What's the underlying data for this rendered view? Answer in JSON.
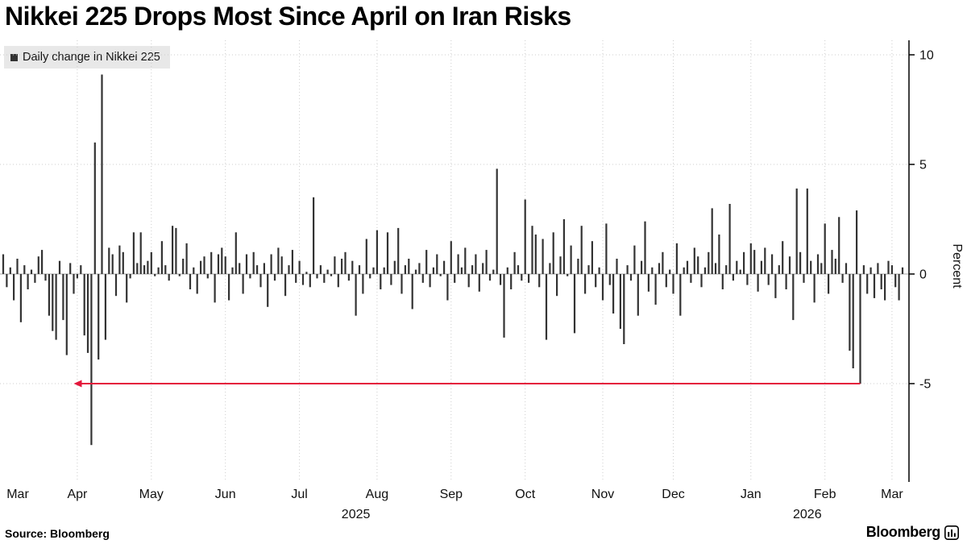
{
  "header": {
    "title": "Nikkei 225 Drops Most Since April on Iran Risks"
  },
  "legend": {
    "label": "Daily change in Nikkei 225",
    "marker_color": "#333333"
  },
  "footer": {
    "source": "Source: Bloomberg",
    "logo_text": "Bloomberg"
  },
  "chart_data": {
    "type": "bar",
    "title": "Nikkei 225 Drops Most Since April on Iran Risks",
    "series_name": "Daily change in Nikkei 225",
    "ylabel": "Percent",
    "yticks": [
      10,
      5,
      0,
      -5
    ],
    "ylim": [
      -9.5,
      10.5
    ],
    "grid": "dotted",
    "legend_position": "top-left",
    "bar_color": "#333333",
    "months": [
      {
        "label": "Mar",
        "days": 21
      },
      {
        "label": "Apr",
        "days": 21
      },
      {
        "label": "May",
        "days": 21
      },
      {
        "label": "Jun",
        "days": 21
      },
      {
        "label": "Jul",
        "days": 22
      },
      {
        "label": "Aug",
        "days": 21
      },
      {
        "label": "Sep",
        "days": 21
      },
      {
        "label": "Oct",
        "days": 22
      },
      {
        "label": "Nov",
        "days": 20
      },
      {
        "label": "Dec",
        "days": 22
      },
      {
        "label": "Jan",
        "days": 21
      },
      {
        "label": "Feb",
        "days": 19
      },
      {
        "label": "Mar",
        "days": 4
      }
    ],
    "years": [
      {
        "label": "2025",
        "center_index": 100
      },
      {
        "label": "2026",
        "center_index": 228
      }
    ],
    "values": [
      0.9,
      -0.6,
      0.3,
      -1.2,
      0.7,
      -2.2,
      0.4,
      -0.7,
      0.2,
      -0.4,
      0.8,
      1.1,
      -0.3,
      -1.9,
      -2.6,
      -3.0,
      0.6,
      -2.1,
      -3.7,
      0.5,
      -0.9,
      -0.2,
      0.4,
      -2.8,
      -3.6,
      -7.8,
      6.0,
      -3.9,
      9.1,
      -3.0,
      1.2,
      0.9,
      -1.0,
      1.3,
      1.0,
      -1.3,
      -0.2,
      1.9,
      0.5,
      1.9,
      0.4,
      0.6,
      1.0,
      -0.1,
      0.3,
      1.5,
      0.4,
      -0.3,
      2.2,
      2.1,
      -0.1,
      0.7,
      1.4,
      -0.7,
      0.3,
      -0.9,
      0.6,
      0.8,
      -0.2,
      1.0,
      -1.3,
      0.9,
      1.2,
      0.8,
      -1.2,
      0.3,
      1.9,
      0.5,
      -0.9,
      0.9,
      -0.2,
      1.0,
      0.4,
      -0.6,
      0.5,
      -1.5,
      0.9,
      -0.3,
      1.2,
      0.8,
      -1.0,
      0.4,
      1.1,
      -0.4,
      0.6,
      -0.5,
      0.1,
      -0.6,
      3.5,
      -0.2,
      0.4,
      -0.4,
      0.2,
      -0.1,
      0.8,
      -0.6,
      0.7,
      1.0,
      -0.3,
      0.6,
      -1.9,
      0.4,
      -0.9,
      1.6,
      -0.2,
      0.3,
      2.0,
      -0.7,
      0.3,
      1.9,
      -0.5,
      0.6,
      2.1,
      -0.9,
      0.4,
      0.7,
      -1.6,
      0.2,
      0.5,
      -0.4,
      1.1,
      -0.6,
      0.3,
      0.9,
      -0.1,
      0.6,
      -1.2,
      1.5,
      -0.4,
      0.9,
      0.3,
      1.2,
      -0.6,
      0.4,
      0.9,
      -0.8,
      0.5,
      1.1,
      -0.3,
      0.2,
      4.8,
      -0.5,
      -2.9,
      0.3,
      -0.7,
      1.0,
      0.4,
      -0.3,
      3.4,
      -0.4,
      2.2,
      1.8,
      -0.6,
      1.6,
      -3.0,
      0.5,
      1.9,
      -1.0,
      0.8,
      2.5,
      -0.1,
      1.3,
      -2.7,
      0.7,
      2.2,
      -0.9,
      0.4,
      1.5,
      -0.6,
      0.3,
      -1.2,
      2.3,
      -0.5,
      -1.8,
      0.7,
      -2.5,
      -3.2,
      0.4,
      -0.3,
      1.3,
      -1.9,
      0.6,
      2.4,
      -0.8,
      0.3,
      -1.4,
      0.5,
      1.0,
      -0.6,
      0.2,
      -0.9,
      1.4,
      -1.9,
      0.3,
      0.6,
      -0.4,
      1.2,
      0.8,
      -0.6,
      0.3,
      1.0,
      3.0,
      0.5,
      1.8,
      -0.7,
      0.4,
      3.2,
      -0.3,
      0.6,
      0.2,
      1.0,
      -0.5,
      1.4,
      1.1,
      -0.8,
      0.6,
      1.2,
      -0.5,
      0.9,
      -1.1,
      0.4,
      1.5,
      -0.7,
      0.8,
      -2.1,
      3.9,
      1.0,
      -0.4,
      3.9,
      0.6,
      -1.3,
      0.9,
      0.5,
      2.3,
      -0.9,
      1.1,
      0.7,
      2.6,
      -0.4,
      0.5,
      -3.5,
      -4.3,
      2.9,
      -5.0,
      0.4,
      -0.9,
      0.3,
      -1.1,
      0.5,
      -0.7,
      -1.2,
      0.6,
      0.4,
      -0.6,
      -1.2,
      0.3
    ],
    "annotation": {
      "type": "arrow",
      "label": "most-since-april-arrow",
      "y": -5,
      "from_index": 243,
      "to_index": 20,
      "color": "#e4183c"
    }
  }
}
